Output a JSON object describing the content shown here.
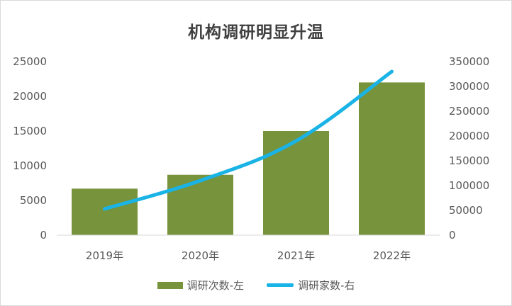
{
  "chart_data": {
    "type": "bar",
    "title": "机构调研明显升温",
    "categories": [
      "2019年",
      "2020年",
      "2021年",
      "2022年"
    ],
    "series": [
      {
        "name": "调研次数-左",
        "type": "bar",
        "axis": "left",
        "color": "#77933c",
        "values": [
          6700,
          8700,
          15000,
          22000
        ]
      },
      {
        "name": "调研家数-右",
        "type": "line",
        "axis": "right",
        "color": "#1ab3e6",
        "values": [
          53000,
          110000,
          190000,
          330000
        ]
      }
    ],
    "y_left": {
      "min": 0,
      "max": 25000,
      "ticks": [
        "0",
        "5000",
        "10000",
        "15000",
        "20000",
        "25000"
      ]
    },
    "y_right": {
      "min": 0,
      "max": 350000,
      "ticks": [
        "0",
        "50000",
        "100000",
        "150000",
        "200000",
        "250000",
        "300000",
        "350000"
      ]
    },
    "grid": false,
    "legend_position": "bottom"
  }
}
